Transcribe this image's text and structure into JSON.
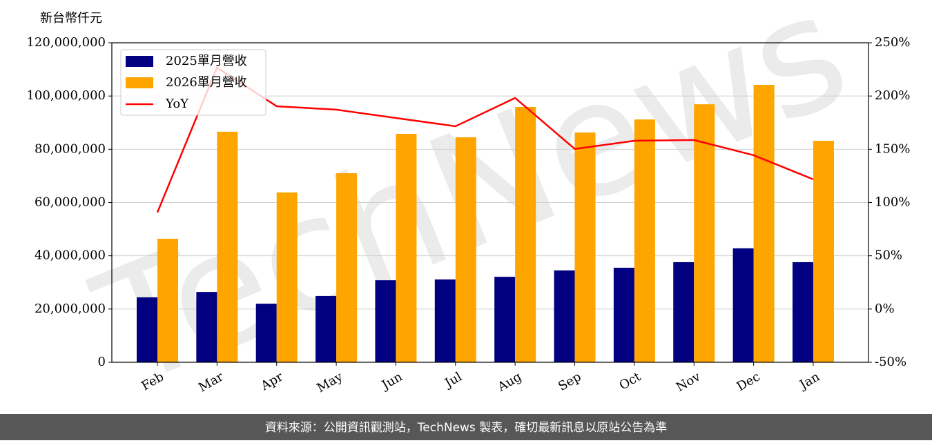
{
  "chart_data": {
    "type": "bar",
    "y_label": "新台幣仟元",
    "watermark": "TechNews",
    "source": "資料來源：公開資訊觀測站，TechNews 製表，確切最新訊息以原站公告為準",
    "categories": [
      "Feb",
      "Mar",
      "Apr",
      "May",
      "Jun",
      "Jul",
      "Aug",
      "Sep",
      "Oct",
      "Nov",
      "Dec",
      "Jan"
    ],
    "series": [
      {
        "name": "2025單月營收",
        "color": "#000080",
        "type": "bar",
        "values": [
          24400000,
          26400000,
          22000000,
          24900000,
          30800000,
          31100000,
          32100000,
          34500000,
          35500000,
          37600000,
          42800000,
          37600000
        ]
      },
      {
        "name": "2026單月營收",
        "color": "#ffa500",
        "type": "bar",
        "values": [
          46400000,
          86600000,
          63800000,
          71000000,
          85800000,
          84500000,
          95900000,
          86300000,
          91200000,
          96900000,
          104200000,
          83200000
        ]
      },
      {
        "name": "YoY",
        "color": "#ff0000",
        "type": "line",
        "axis": "y2",
        "values": [
          90.7,
          226.7,
          190.4,
          187.2,
          179.4,
          171.6,
          198.2,
          150.3,
          158,
          158.7,
          144.4,
          121.8
        ]
      }
    ],
    "ylim": [
      0,
      120000000
    ],
    "yticks": [
      0,
      {
        "value": 20000000,
        "label": "20,000,000"
      },
      {
        "value": 40000000,
        "label": "40,000,000"
      },
      {
        "value": 60000000,
        "label": "60,000,000"
      },
      {
        "value": 80000000,
        "label": "80,000,000"
      },
      {
        "value": 100000000,
        "label": "100,000,000"
      },
      {
        "value": 120000000,
        "label": "120,000,000"
      }
    ],
    "y2lim": [
      -50,
      250
    ],
    "y2ticks": [
      {
        "value": -50,
        "label": "-50%"
      },
      {
        "value": 0,
        "label": "0%"
      },
      {
        "value": 50,
        "label": "50%"
      },
      {
        "value": 100,
        "label": "100%"
      },
      {
        "value": 150,
        "label": "150%"
      },
      {
        "value": 200,
        "label": "200%"
      },
      {
        "value": 250,
        "label": "250%"
      }
    ],
    "grid": true,
    "legend": "upper left"
  }
}
